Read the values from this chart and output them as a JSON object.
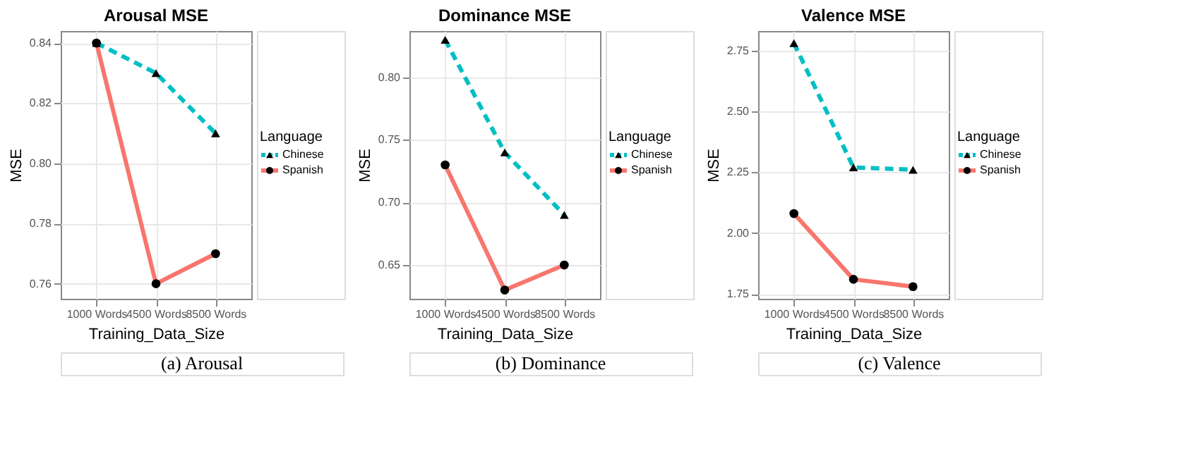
{
  "chart_data": [
    {
      "type": "line",
      "title": "Arousal MSE",
      "xlabel": "Training_Data_Size",
      "ylabel": "MSE",
      "legend_title": "Language",
      "legend": "right",
      "grid": true,
      "categories": [
        "1000 Words",
        "4500 Words",
        "8500 Words"
      ],
      "ylim": [
        0.755,
        0.844
      ],
      "yticks": [
        0.76,
        0.78,
        {
          "value": 0.8,
          "label": "0.80"
        },
        0.82,
        0.84
      ],
      "annotations": [
        "(a)  Arousal"
      ],
      "series": [
        {
          "name": "Chinese",
          "color": "#00bfc4",
          "line_style": "dashed",
          "marker": "triangle",
          "values": [
            0.84,
            0.83,
            0.81
          ]
        },
        {
          "name": "Spanish",
          "color": "#f8766d",
          "line_style": "solid",
          "marker": "circle",
          "values": [
            0.84,
            0.76,
            0.77
          ]
        }
      ]
    },
    {
      "type": "line",
      "title": "Dominance MSE",
      "xlabel": "Training_Data_Size",
      "ylabel": "MSE",
      "legend_title": "Language",
      "legend": "right",
      "grid": true,
      "categories": [
        "1000 Words",
        "4500 Words",
        "8500 Words"
      ],
      "ylim": [
        0.623,
        0.837
      ],
      "yticks": [
        0.65,
        {
          "value": 0.7,
          "label": "0.70"
        },
        0.75,
        {
          "value": 0.8,
          "label": "0.80"
        }
      ],
      "annotations": [
        "(b)  Dominance"
      ],
      "series": [
        {
          "name": "Chinese",
          "color": "#00bfc4",
          "line_style": "dashed",
          "marker": "triangle",
          "values": [
            0.83,
            0.74,
            0.69
          ]
        },
        {
          "name": "Spanish",
          "color": "#f8766d",
          "line_style": "solid",
          "marker": "circle",
          "values": [
            0.73,
            0.63,
            0.65
          ]
        }
      ]
    },
    {
      "type": "line",
      "title": "Valence MSE",
      "xlabel": "Training_Data_Size",
      "ylabel": "MSE",
      "legend_title": "Language",
      "legend": "right",
      "grid": true,
      "categories": [
        "1000 Words",
        "4500 Words",
        "8500 Words"
      ],
      "ylim": [
        1.73,
        2.83
      ],
      "yticks": [
        1.75,
        {
          "value": 2,
          "label": "2.00"
        },
        2.25,
        {
          "value": 2.5,
          "label": "2.50"
        },
        2.75
      ],
      "annotations": [
        "(c)  Valence"
      ],
      "series": [
        {
          "name": "Chinese",
          "color": "#00bfc4",
          "line_style": "dashed",
          "marker": "triangle",
          "values": [
            2.78,
            2.27,
            2.26
          ]
        },
        {
          "name": "Spanish",
          "color": "#f8766d",
          "line_style": "solid",
          "marker": "circle",
          "values": [
            2.08,
            1.81,
            1.78
          ]
        }
      ]
    }
  ]
}
